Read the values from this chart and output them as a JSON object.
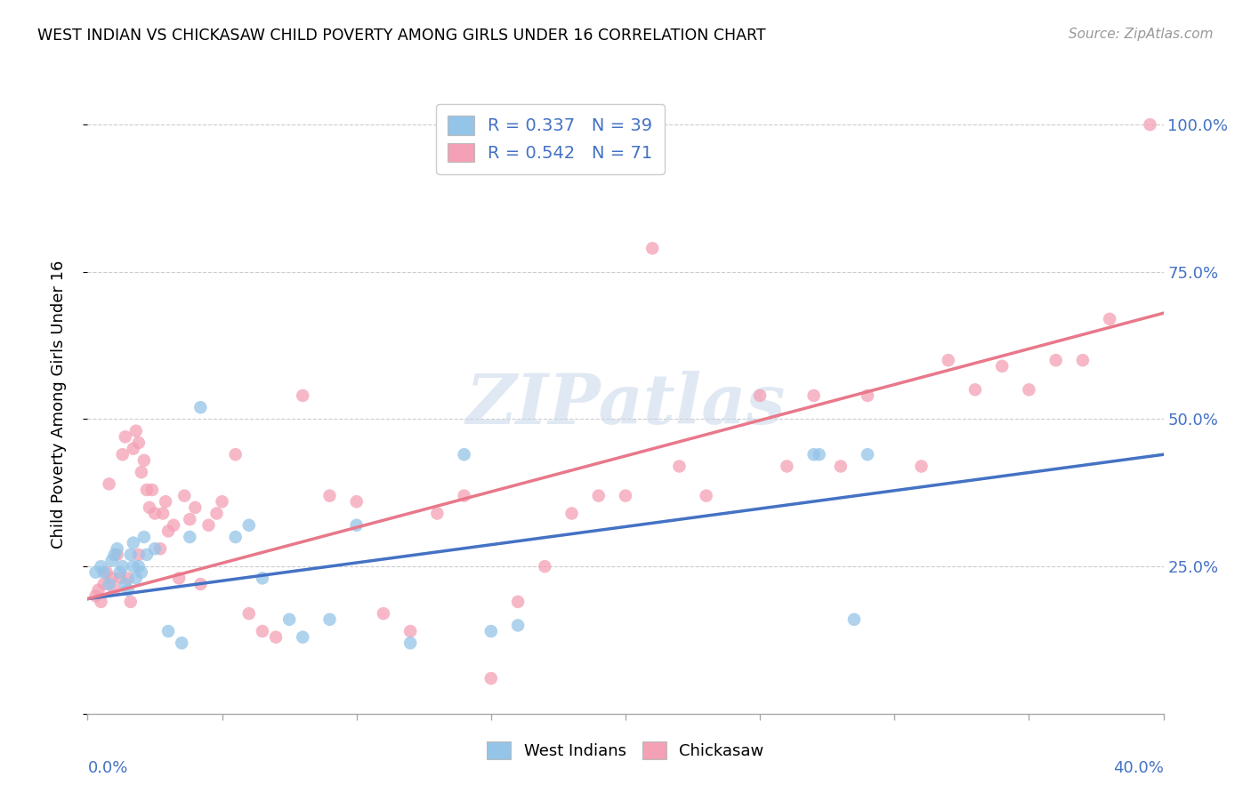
{
  "title": "WEST INDIAN VS CHICKASAW CHILD POVERTY AMONG GIRLS UNDER 16 CORRELATION CHART",
  "source": "Source: ZipAtlas.com",
  "ylabel": "Child Poverty Among Girls Under 16",
  "yticks": [
    0.0,
    0.25,
    0.5,
    0.75,
    1.0
  ],
  "ytick_labels": [
    "",
    "25.0%",
    "50.0%",
    "75.0%",
    "100.0%"
  ],
  "xticks": [
    0.0,
    0.05,
    0.1,
    0.15,
    0.2,
    0.25,
    0.3,
    0.35,
    0.4
  ],
  "xlim": [
    0.0,
    0.4
  ],
  "ylim": [
    0.0,
    1.05
  ],
  "west_indians_R": 0.337,
  "west_indians_N": 39,
  "chickasaw_R": 0.542,
  "chickasaw_N": 71,
  "color_blue": "#94c4e8",
  "color_pink": "#f4a0b5",
  "color_blue_line": "#4472c4",
  "color_pink_line": "#e8788a",
  "color_text_blue": "#4472c4",
  "watermark": "ZIPatlas",
  "wi_x": [
    0.003,
    0.005,
    0.006,
    0.008,
    0.009,
    0.01,
    0.011,
    0.012,
    0.013,
    0.014,
    0.015,
    0.016,
    0.017,
    0.017,
    0.018,
    0.019,
    0.02,
    0.021,
    0.022,
    0.025,
    0.03,
    0.035,
    0.038,
    0.042,
    0.055,
    0.06,
    0.065,
    0.075,
    0.08,
    0.09,
    0.1,
    0.12,
    0.14,
    0.15,
    0.16,
    0.27,
    0.272,
    0.285,
    0.29
  ],
  "wi_y": [
    0.24,
    0.25,
    0.24,
    0.22,
    0.26,
    0.27,
    0.28,
    0.24,
    0.25,
    0.22,
    0.21,
    0.27,
    0.25,
    0.29,
    0.23,
    0.25,
    0.24,
    0.3,
    0.27,
    0.28,
    0.14,
    0.12,
    0.3,
    0.52,
    0.3,
    0.32,
    0.23,
    0.16,
    0.13,
    0.16,
    0.32,
    0.12,
    0.44,
    0.14,
    0.15,
    0.44,
    0.44,
    0.16,
    0.44
  ],
  "ck_x": [
    0.003,
    0.004,
    0.005,
    0.006,
    0.007,
    0.008,
    0.009,
    0.01,
    0.011,
    0.012,
    0.013,
    0.014,
    0.015,
    0.016,
    0.017,
    0.018,
    0.019,
    0.019,
    0.02,
    0.021,
    0.022,
    0.023,
    0.024,
    0.025,
    0.027,
    0.028,
    0.029,
    0.03,
    0.032,
    0.034,
    0.036,
    0.038,
    0.04,
    0.042,
    0.045,
    0.048,
    0.05,
    0.055,
    0.06,
    0.065,
    0.07,
    0.08,
    0.09,
    0.1,
    0.11,
    0.12,
    0.13,
    0.14,
    0.15,
    0.16,
    0.17,
    0.18,
    0.19,
    0.2,
    0.21,
    0.22,
    0.23,
    0.25,
    0.26,
    0.27,
    0.28,
    0.29,
    0.31,
    0.32,
    0.33,
    0.34,
    0.35,
    0.36,
    0.37,
    0.38,
    0.395
  ],
  "ck_y": [
    0.2,
    0.21,
    0.19,
    0.22,
    0.24,
    0.39,
    0.23,
    0.21,
    0.27,
    0.23,
    0.44,
    0.47,
    0.23,
    0.19,
    0.45,
    0.48,
    0.27,
    0.46,
    0.41,
    0.43,
    0.38,
    0.35,
    0.38,
    0.34,
    0.28,
    0.34,
    0.36,
    0.31,
    0.32,
    0.23,
    0.37,
    0.33,
    0.35,
    0.22,
    0.32,
    0.34,
    0.36,
    0.44,
    0.17,
    0.14,
    0.13,
    0.54,
    0.37,
    0.36,
    0.17,
    0.14,
    0.34,
    0.37,
    0.06,
    0.19,
    0.25,
    0.34,
    0.37,
    0.37,
    0.79,
    0.42,
    0.37,
    0.54,
    0.42,
    0.54,
    0.42,
    0.54,
    0.42,
    0.6,
    0.55,
    0.59,
    0.55,
    0.6,
    0.6,
    0.67,
    1.0
  ],
  "wi_line_x": [
    0.0,
    0.4
  ],
  "wi_line_y": [
    0.195,
    0.44
  ],
  "ck_line_x": [
    0.0,
    0.4
  ],
  "ck_line_y": [
    0.195,
    0.68
  ]
}
